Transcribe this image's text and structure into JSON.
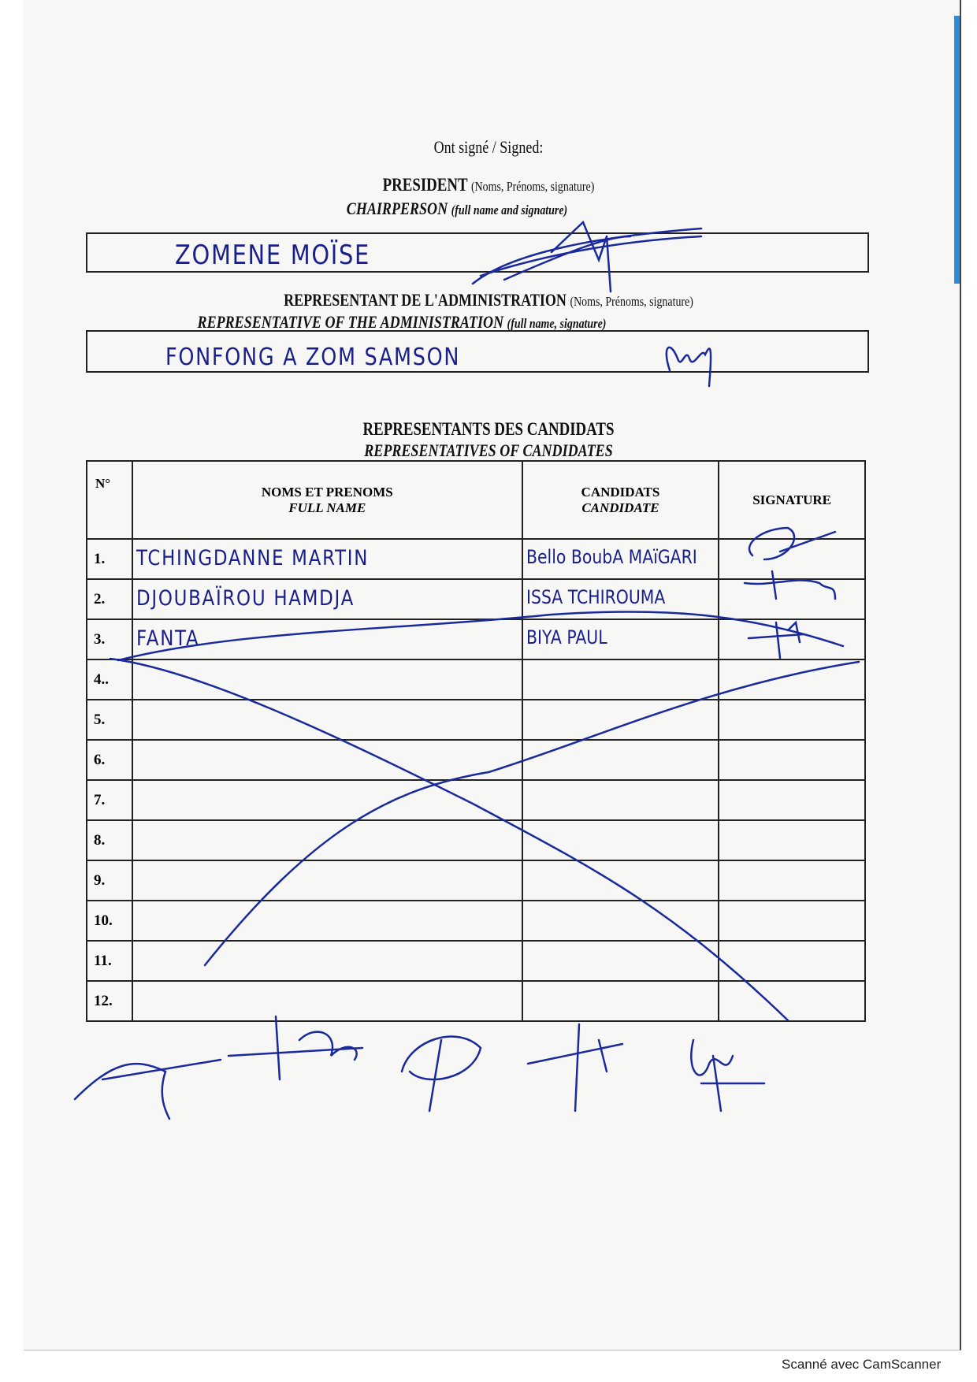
{
  "heading": "Ont signé / Signed:",
  "president": {
    "title_fr": "PRESIDENT",
    "title_fr_note": "(Noms, Prénoms, signature)",
    "title_en": "CHAIRPERSON",
    "title_en_note": "(full name and signature)",
    "name": "ZOMENE MOÏSE"
  },
  "administration": {
    "title_fr": "REPRESENTANT DE L'ADMINISTRATION",
    "title_fr_note": "(Noms, Prénoms, signature)",
    "title_en": "REPRESENTATIVE OF THE ADMINISTRATION",
    "title_en_note": "(full name, signature)",
    "name": "FONFONG A ZOM SAMSON"
  },
  "candidates_section": {
    "title_fr": "REPRESENTANTS DES CANDIDATS",
    "title_en": "REPRESENTATIVES OF CANDIDATES",
    "columns": {
      "no": "N°",
      "name_fr": "NOMS ET PRENOMS",
      "name_en": "FULL NAME",
      "candidate_fr": "CANDIDATS",
      "candidate_en": "CANDIDATE",
      "signature": "SIGNATURE"
    },
    "rows": [
      {
        "no": "1.",
        "name": "TCHINGDANNE   MARTIN",
        "candidate": "Bello BoubA MAïGARI"
      },
      {
        "no": "2.",
        "name": "DJOUBAÏROU HAMDJA",
        "candidate": "ISSA TCHIROUMA"
      },
      {
        "no": "3.",
        "name": "FANTA",
        "candidate": "BIYA  PAUL"
      },
      {
        "no": "4..",
        "name": "",
        "candidate": ""
      },
      {
        "no": "5.",
        "name": "",
        "candidate": ""
      },
      {
        "no": "6.",
        "name": "",
        "candidate": ""
      },
      {
        "no": "7.",
        "name": "",
        "candidate": ""
      },
      {
        "no": "8.",
        "name": "",
        "candidate": ""
      },
      {
        "no": "9.",
        "name": "",
        "candidate": ""
      },
      {
        "no": "10.",
        "name": "",
        "candidate": ""
      },
      {
        "no": "11.",
        "name": "",
        "candidate": ""
      },
      {
        "no": "12.",
        "name": "",
        "candidate": ""
      }
    ]
  },
  "footer": "Scanné avec CamScanner",
  "colors": {
    "ink": "#1a1f8c",
    "scanner_stripe": "#2a8de0"
  }
}
